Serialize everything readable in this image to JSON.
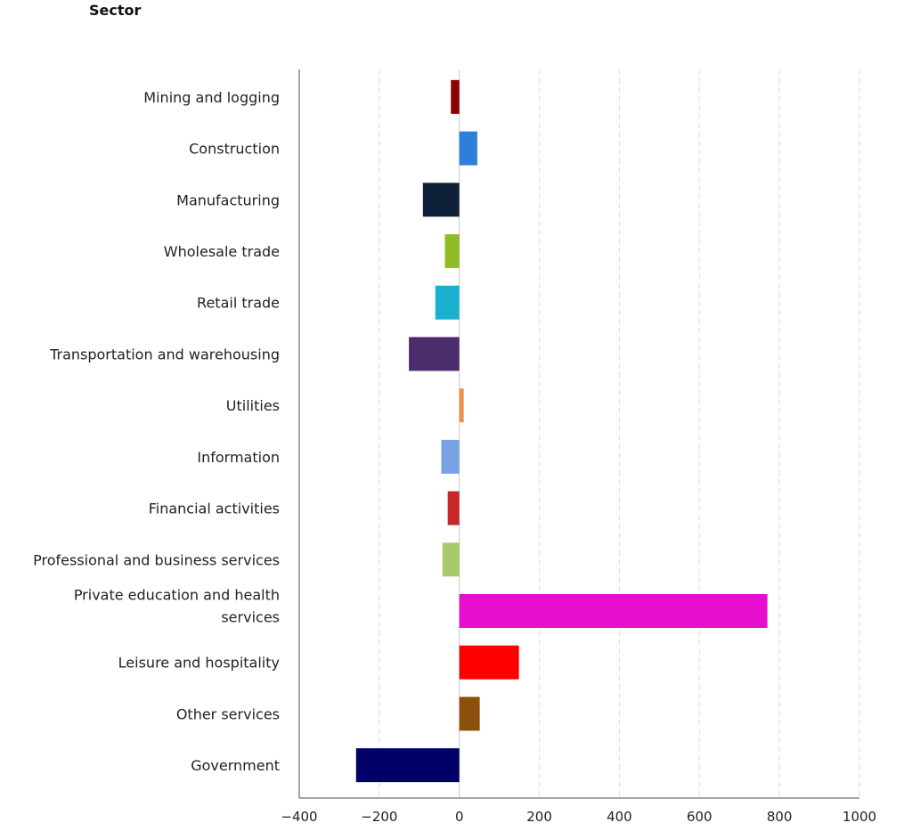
{
  "chart_data": {
    "type": "bar",
    "orientation": "horizontal",
    "title": "Sector",
    "xlabel": "",
    "ylabel": "",
    "xlim": [
      -400,
      1000
    ],
    "xticks": [
      -400,
      -200,
      0,
      200,
      400,
      600,
      800,
      1000
    ],
    "xtick_labels": [
      "−400",
      "−200",
      "0",
      "200",
      "400",
      "600",
      "800",
      "1000"
    ],
    "grid": "vertical dashed",
    "categories": [
      {
        "label": [
          "Mining and logging"
        ],
        "value": -21,
        "color": "#8b0000"
      },
      {
        "label": [
          "Construction"
        ],
        "value": 45,
        "color": "#2e7fd9"
      },
      {
        "label": [
          "Manufacturing"
        ],
        "value": -91,
        "color": "#0e2139"
      },
      {
        "label": [
          "Wholesale trade"
        ],
        "value": -36,
        "color": "#8fbd24"
      },
      {
        "label": [
          "Retail trade"
        ],
        "value": -60,
        "color": "#1aafcf"
      },
      {
        "label": [
          "Transportation and warehousing"
        ],
        "value": -126,
        "color": "#4b2d6e"
      },
      {
        "label": [
          "Utilities"
        ],
        "value": 11,
        "color": "#f0914a"
      },
      {
        "label": [
          "Information"
        ],
        "value": -45,
        "color": "#78a2e4"
      },
      {
        "label": [
          "Financial activities"
        ],
        "value": -29,
        "color": "#c7272a"
      },
      {
        "label": [
          "Professional and business services"
        ],
        "value": -42,
        "color": "#a6c96a"
      },
      {
        "label": [
          "Private education and health",
          "services"
        ],
        "value": 770,
        "color": "#e80ecd"
      },
      {
        "label": [
          "Leisure and hospitality"
        ],
        "value": 149,
        "color": "#ff0000"
      },
      {
        "label": [
          "Other services"
        ],
        "value": 51,
        "color": "#8b500c"
      },
      {
        "label": [
          "Government"
        ],
        "value": -258,
        "color": "#000066"
      }
    ]
  }
}
